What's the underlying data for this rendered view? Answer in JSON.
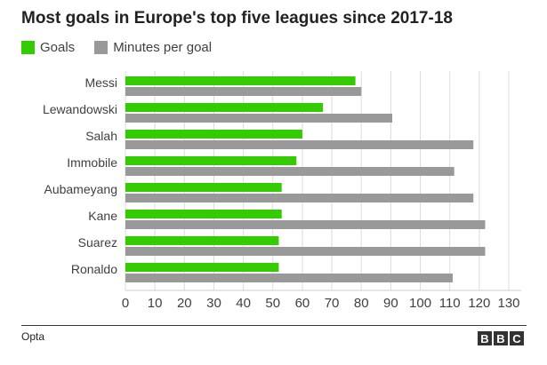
{
  "chart_data": {
    "type": "bar",
    "title": "Most goals in Europe's top five leagues since 2017-18",
    "categories": [
      "Messi",
      "Lewandowski",
      "Salah",
      "Immobile",
      "Aubameyang",
      "Kane",
      "Suarez",
      "Ronaldo"
    ],
    "series": [
      {
        "name": "Goals",
        "color": "#33cc00",
        "values": [
          78,
          67,
          60,
          58,
          53,
          53,
          52,
          52
        ]
      },
      {
        "name": "Minutes per goal",
        "color": "#999999",
        "values": [
          80,
          90.5,
          118,
          111.5,
          118,
          122,
          122,
          111
        ]
      }
    ],
    "xlim": [
      0,
      130
    ],
    "xticks": [
      "0",
      "10",
      "20",
      "30",
      "40",
      "50",
      "60",
      "70",
      "80",
      "90",
      "100",
      "110",
      "120",
      "130"
    ],
    "grid": true,
    "legend": "top-left"
  },
  "source": "Opta",
  "logo": [
    "B",
    "B",
    "C"
  ]
}
